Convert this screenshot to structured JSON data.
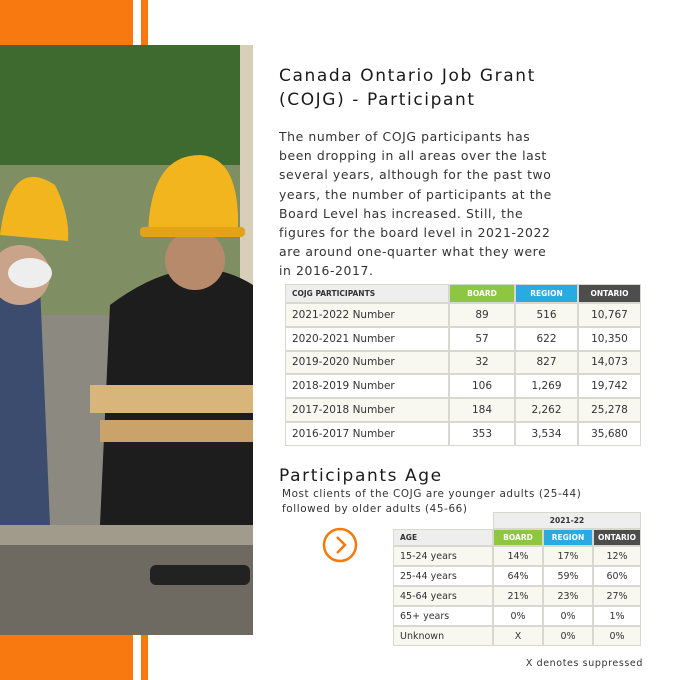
{
  "header": {
    "title_lines": [
      "Canada Ontario Job Grant",
      "(COJG) - Participant"
    ],
    "paragraph_lines": [
      "The number of COJG participants has",
      "been dropping in all areas over the last",
      "several years, although for the past two",
      "years, the number of participants at the",
      "Board Level has increased. Still, the",
      "figures for the board level in 2021-2022",
      "are around one-quarter what they were",
      "in 2016-2017."
    ]
  },
  "participants_table": {
    "columns": [
      "COJG PARTICIPANTS",
      "BOARD",
      "REGION",
      "ONTARIO"
    ],
    "rows": [
      [
        "2021-2022 Number",
        "89",
        "516",
        "10,767"
      ],
      [
        "2020-2021 Number",
        "57",
        "622",
        "10,350"
      ],
      [
        "2019-2020 Number",
        "32",
        "827",
        "14,073"
      ],
      [
        "2018-2019 Number",
        "106",
        "1,269",
        "19,742"
      ],
      [
        "2017-2018 Number",
        "184",
        "2,262",
        "25,278"
      ],
      [
        "2016-2017 Number",
        "353",
        "3,534",
        "35,680"
      ]
    ]
  },
  "age_section": {
    "title": "Participants Age",
    "subtitle_lines": [
      "Most clients of the COJG are younger adults (25-44)",
      "followed by older adults (45-66)"
    ],
    "table": {
      "group_header": "2021-22",
      "columns": [
        "AGE",
        "BOARD",
        "REGION",
        "ONTARIO"
      ],
      "rows": [
        [
          "15-24 years",
          "14%",
          "17%",
          "12%"
        ],
        [
          "25-44 years",
          "64%",
          "59%",
          "60%"
        ],
        [
          "45-64 years",
          "21%",
          "23%",
          "27%"
        ],
        [
          "65+ years",
          "0%",
          "0%",
          "1%"
        ],
        [
          "Unknown",
          "X",
          "0%",
          "0%"
        ]
      ]
    }
  },
  "footnote": "X denotes suppressed"
}
